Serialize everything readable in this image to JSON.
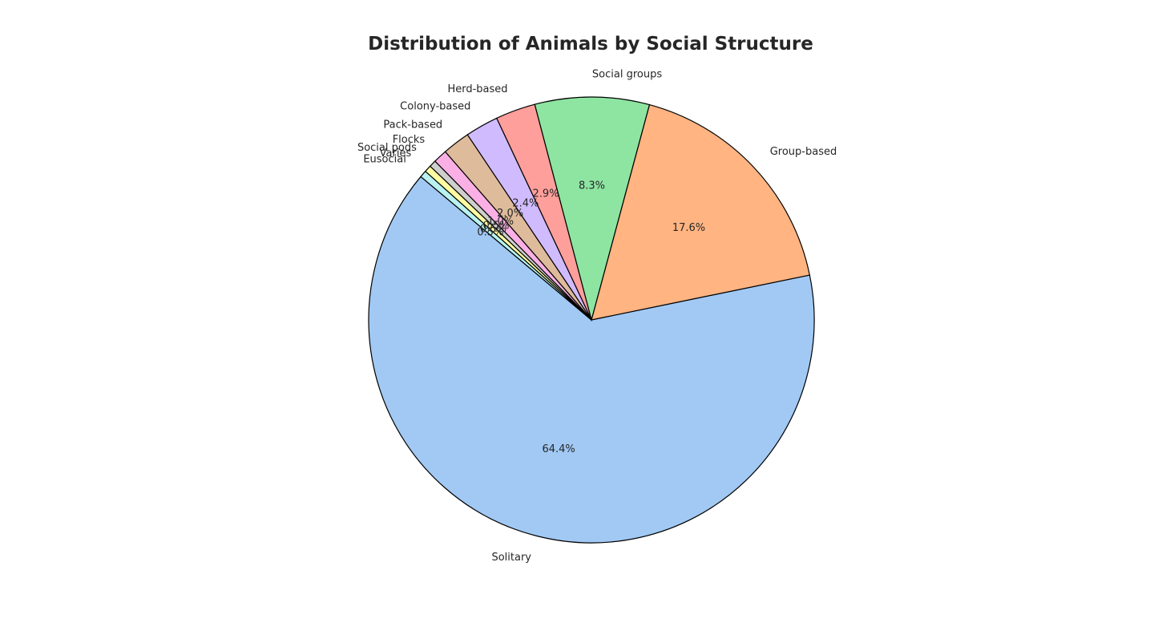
{
  "chart_data": {
    "type": "pie",
    "title": "Distribution of Animals by Social Structure",
    "start_angle_deg": 140,
    "direction": "counterclockwise",
    "slices": [
      {
        "label": "Solitary",
        "percent": 64.4,
        "pct_label": "64.4%",
        "color": "#a1c9f4"
      },
      {
        "label": "Group-based",
        "percent": 17.6,
        "pct_label": "17.6%",
        "color": "#ffb482"
      },
      {
        "label": "Social groups",
        "percent": 8.3,
        "pct_label": "8.3%",
        "color": "#8de5a1"
      },
      {
        "label": "Herd-based",
        "percent": 2.9,
        "pct_label": "2.9%",
        "color": "#ff9f9b"
      },
      {
        "label": "Colony-based",
        "percent": 2.4,
        "pct_label": "2.4%",
        "color": "#d0bbff"
      },
      {
        "label": "Pack-based",
        "percent": 2.0,
        "pct_label": "2.0%",
        "color": "#debb9b"
      },
      {
        "label": "Flocks",
        "percent": 1.0,
        "pct_label": "1.0%",
        "color": "#fab0e4"
      },
      {
        "label": "Social pods",
        "percent": 0.5,
        "pct_label": "0.5%",
        "color": "#cfcfcf"
      },
      {
        "label": "Varies",
        "percent": 0.5,
        "pct_label": "0.5%",
        "color": "#fffea3"
      },
      {
        "label": "Eusocial",
        "percent": 0.5,
        "pct_label": "0.5%",
        "color": "#b9f2f0"
      }
    ]
  }
}
